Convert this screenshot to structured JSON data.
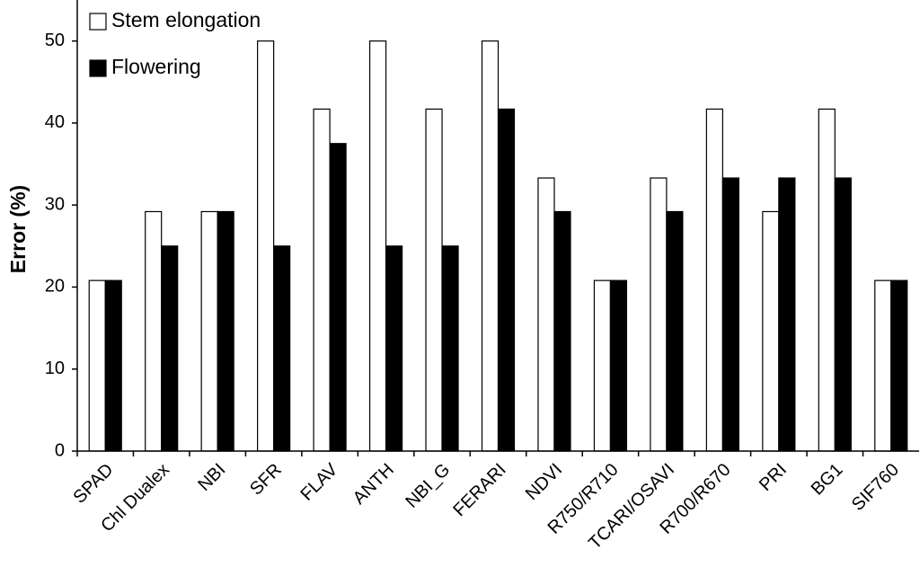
{
  "chart_data": {
    "type": "bar",
    "y_label": "Error (%)",
    "categories": [
      "SPAD",
      "Chl Dualex",
      "NBI",
      "SFR",
      "FLAV",
      "ANTH",
      "NBI_G",
      "FERARI",
      "NDVI",
      "R750/R710",
      "TCARI/OSAVI",
      "R700/R670",
      "PRI",
      "BG1",
      "SIF760"
    ],
    "series": [
      {
        "name": "Stem elongation",
        "color": "#ffffff",
        "values": [
          20.8,
          29.2,
          29.2,
          50,
          41.7,
          50,
          41.7,
          50,
          33.3,
          20.8,
          33.3,
          41.7,
          29.2,
          41.7,
          20.8
        ]
      },
      {
        "name": "Flowering",
        "color": "#000000",
        "values": [
          20.8,
          25,
          29.2,
          25,
          37.5,
          25,
          25,
          41.7,
          29.2,
          20.8,
          29.2,
          33.3,
          33.3,
          33.3,
          20.8
        ]
      }
    ],
    "ylim": [
      0,
      55
    ],
    "yticks": [
      0,
      10,
      20,
      30,
      40,
      50
    ],
    "legend": "top-left",
    "grid": false
  }
}
